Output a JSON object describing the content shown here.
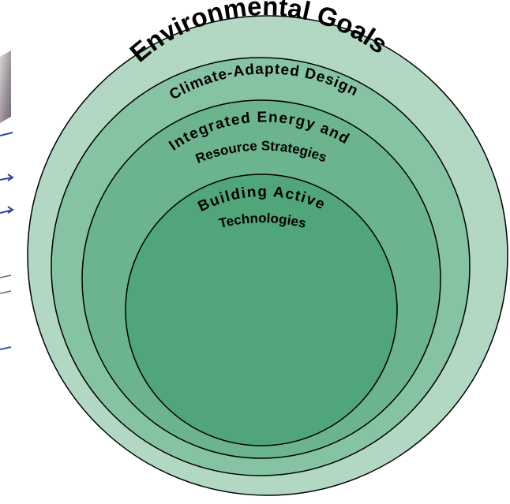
{
  "diagram": {
    "rings": [
      {
        "id": "environmental-goals",
        "label": "Environmental Goals",
        "fill": "#b2d8c3"
      },
      {
        "id": "climate-adapted-design",
        "label": "Climate-Adapted Design",
        "fill": "#86c3a2"
      },
      {
        "id": "integrated-energy",
        "label_line1": "Integrated Energy and",
        "label_line2": "Resource Strategies",
        "fill": "#6bb48d"
      },
      {
        "id": "building-active",
        "label_line1": "Building Active",
        "label_line2": "Technologies",
        "fill": "#50a57a"
      }
    ],
    "stroke_color": "#000000",
    "left_fragment_colors": [
      "#5a6a8a",
      "#c9c9c9",
      "#3c5aa8"
    ]
  }
}
